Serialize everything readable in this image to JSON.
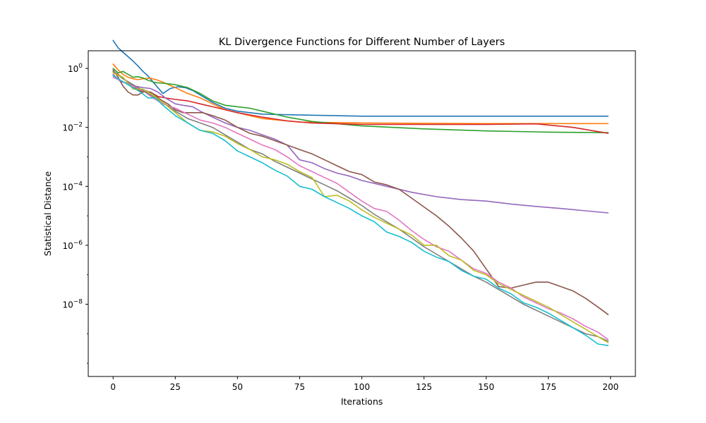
{
  "chart_data": {
    "type": "line",
    "title": "KL Divergence Functions for Different Number of Layers",
    "xlabel": "Iterations",
    "ylabel": "Statistical Distance",
    "xlim": [
      -10,
      210
    ],
    "xticks": [
      0,
      25,
      50,
      75,
      100,
      125,
      150,
      175,
      200
    ],
    "xtick_labels": [
      "0",
      "25",
      "50",
      "75",
      "100",
      "125",
      "150",
      "175",
      "200"
    ],
    "yscale": "log",
    "ylim_log10": [
      -10.45,
      0.6
    ],
    "yticks_log10": [
      0,
      -2,
      -4,
      -6,
      -8
    ],
    "ytick_labels": [
      "10",
      "10",
      "10",
      "10",
      "10"
    ],
    "ytick_exponents": [
      "0",
      "−2",
      "−4",
      "−6",
      "−8"
    ],
    "grid": false,
    "legend": "none",
    "series": [
      {
        "color": "#1f77b4",
        "x": [
          0,
          2,
          4,
          6,
          8,
          10,
          12,
          14,
          17,
          20,
          23,
          26,
          29,
          32,
          35,
          40,
          45,
          50,
          60,
          75,
          100,
          150,
          199
        ],
        "log10_y": [
          0.95,
          0.7,
          0.55,
          0.4,
          0.25,
          0.08,
          -0.1,
          -0.25,
          -0.55,
          -0.85,
          -0.68,
          -0.62,
          -0.65,
          -0.75,
          -0.9,
          -1.15,
          -1.35,
          -1.45,
          -1.55,
          -1.58,
          -1.62,
          -1.62,
          -1.62
        ]
      },
      {
        "color": "#ff7f0e",
        "x": [
          0,
          2,
          4,
          6,
          8,
          10,
          12,
          15,
          18,
          21,
          25,
          30,
          35,
          40,
          45,
          50,
          60,
          75,
          100,
          150,
          199
        ],
        "log10_y": [
          0.15,
          -0.05,
          -0.2,
          -0.3,
          -0.35,
          -0.38,
          -0.35,
          -0.33,
          -0.4,
          -0.5,
          -0.65,
          -0.85,
          -1.0,
          -1.2,
          -1.4,
          -1.5,
          -1.7,
          -1.82,
          -1.85,
          -1.87,
          -1.87
        ]
      },
      {
        "color": "#2ca02c",
        "x": [
          0,
          2,
          4,
          6,
          8,
          10,
          12,
          14,
          17,
          20,
          25,
          30,
          35,
          40,
          45,
          50,
          55,
          60,
          70,
          80,
          100,
          125,
          150,
          175,
          199
        ],
        "log10_y": [
          0.0,
          -0.15,
          -0.1,
          -0.2,
          -0.3,
          -0.28,
          -0.32,
          -0.4,
          -0.48,
          -0.5,
          -0.55,
          -0.65,
          -0.85,
          -1.1,
          -1.25,
          -1.3,
          -1.35,
          -1.45,
          -1.65,
          -1.8,
          -1.95,
          -2.05,
          -2.12,
          -2.16,
          -2.18
        ]
      },
      {
        "color": "#d62728",
        "x": [
          0,
          2,
          4,
          6,
          8,
          10,
          12,
          15,
          18,
          21,
          25,
          30,
          35,
          40,
          45,
          50,
          60,
          70,
          80,
          100,
          125,
          150,
          170,
          185,
          199
        ],
        "log10_y": [
          -0.1,
          -0.2,
          -0.35,
          -0.45,
          -0.6,
          -0.72,
          -0.8,
          -0.8,
          -0.95,
          -1.0,
          -1.05,
          -1.1,
          -1.2,
          -1.3,
          -1.4,
          -1.5,
          -1.65,
          -1.78,
          -1.85,
          -1.9,
          -1.9,
          -1.9,
          -1.88,
          -2.0,
          -2.2
        ]
      },
      {
        "color": "#9467bd",
        "x": [
          0,
          3,
          6,
          9,
          12,
          15,
          18,
          21,
          25,
          28,
          32,
          35,
          40,
          45,
          50,
          55,
          60,
          65,
          70,
          75,
          80,
          85,
          90,
          95,
          100,
          110,
          120,
          130,
          140,
          150,
          160,
          170,
          180,
          190,
          199
        ],
        "log10_y": [
          -0.2,
          -0.45,
          -0.5,
          -0.6,
          -0.65,
          -0.68,
          -0.8,
          -1.0,
          -1.2,
          -1.25,
          -1.3,
          -1.45,
          -1.65,
          -1.85,
          -2.0,
          -2.1,
          -2.25,
          -2.4,
          -2.6,
          -3.1,
          -3.2,
          -3.4,
          -3.55,
          -3.65,
          -3.8,
          -4.0,
          -4.2,
          -4.35,
          -4.45,
          -4.5,
          -4.6,
          -4.68,
          -4.75,
          -4.83,
          -4.9
        ]
      },
      {
        "color": "#8c564b",
        "x": [
          0,
          2,
          4,
          6,
          8,
          10,
          13,
          16,
          19,
          22,
          25,
          28,
          32,
          36,
          40,
          45,
          50,
          55,
          60,
          65,
          70,
          75,
          80,
          85,
          90,
          95,
          100,
          105,
          110,
          115,
          120,
          125,
          130,
          135,
          140,
          145,
          150,
          155,
          160,
          165,
          170,
          175,
          180,
          185,
          190,
          195,
          199
        ],
        "log10_y": [
          -0.05,
          -0.3,
          -0.6,
          -0.8,
          -0.9,
          -0.9,
          -0.75,
          -0.85,
          -1.05,
          -1.2,
          -1.4,
          -1.5,
          -1.5,
          -1.5,
          -1.6,
          -1.75,
          -2.0,
          -2.2,
          -2.3,
          -2.45,
          -2.6,
          -2.75,
          -2.9,
          -3.1,
          -3.3,
          -3.5,
          -3.6,
          -3.85,
          -3.95,
          -4.1,
          -4.4,
          -4.7,
          -5.0,
          -5.35,
          -5.75,
          -6.2,
          -6.8,
          -7.4,
          -7.45,
          -7.35,
          -7.25,
          -7.25,
          -7.4,
          -7.55,
          -7.8,
          -8.1,
          -8.35
        ]
      },
      {
        "color": "#e377c2",
        "x": [
          0,
          4,
          8,
          12,
          16,
          20,
          25,
          30,
          35,
          40,
          45,
          50,
          55,
          60,
          65,
          70,
          75,
          80,
          85,
          90,
          95,
          100,
          105,
          110,
          115,
          120,
          125,
          130,
          135,
          140,
          145,
          150,
          155,
          160,
          165,
          170,
          175,
          180,
          185,
          190,
          195,
          199
        ],
        "log10_y": [
          -0.3,
          -0.45,
          -0.6,
          -0.75,
          -1.0,
          -1.2,
          -1.35,
          -1.55,
          -1.75,
          -1.85,
          -2.0,
          -2.2,
          -2.4,
          -2.6,
          -2.75,
          -3.0,
          -3.3,
          -3.5,
          -3.7,
          -3.9,
          -4.2,
          -4.5,
          -4.75,
          -4.85,
          -5.15,
          -5.5,
          -5.8,
          -6.05,
          -6.2,
          -6.5,
          -6.8,
          -6.95,
          -7.25,
          -7.45,
          -7.75,
          -7.95,
          -8.15,
          -8.3,
          -8.5,
          -8.75,
          -8.95,
          -9.2
        ]
      },
      {
        "color": "#7f7f7f",
        "x": [
          0,
          4,
          8,
          12,
          16,
          20,
          25,
          30,
          35,
          40,
          45,
          50,
          55,
          60,
          65,
          70,
          75,
          80,
          85,
          90,
          95,
          100,
          105,
          110,
          115,
          120,
          125,
          130,
          135,
          140,
          145,
          150,
          155,
          160,
          165,
          170,
          175,
          180,
          185,
          190,
          195,
          199
        ],
        "log10_y": [
          -0.1,
          -0.35,
          -0.55,
          -0.75,
          -0.95,
          -1.15,
          -1.45,
          -1.7,
          -1.85,
          -2.0,
          -2.25,
          -2.5,
          -2.75,
          -2.9,
          -3.15,
          -3.35,
          -3.55,
          -3.75,
          -3.95,
          -4.15,
          -4.4,
          -4.65,
          -4.95,
          -5.2,
          -5.45,
          -5.75,
          -6.05,
          -6.3,
          -6.55,
          -6.8,
          -7.05,
          -7.25,
          -7.5,
          -7.75,
          -8.0,
          -8.2,
          -8.4,
          -8.6,
          -8.8,
          -9.0,
          -9.1,
          -9.25
        ]
      },
      {
        "color": "#bcbd22",
        "x": [
          0,
          4,
          8,
          12,
          16,
          20,
          25,
          30,
          35,
          40,
          45,
          50,
          55,
          60,
          65,
          70,
          75,
          80,
          85,
          90,
          95,
          100,
          105,
          110,
          115,
          120,
          125,
          130,
          135,
          140,
          145,
          150,
          155,
          160,
          165,
          170,
          175,
          180,
          185,
          190,
          195,
          199
        ],
        "log10_y": [
          -0.15,
          -0.3,
          -0.7,
          -0.7,
          -0.9,
          -1.15,
          -1.5,
          -1.85,
          -2.1,
          -2.15,
          -2.3,
          -2.55,
          -2.75,
          -3.0,
          -3.1,
          -3.25,
          -3.5,
          -3.7,
          -4.35,
          -4.3,
          -4.5,
          -4.8,
          -5.05,
          -5.25,
          -5.45,
          -5.65,
          -6.0,
          -6.0,
          -6.35,
          -6.5,
          -6.85,
          -7.0,
          -7.3,
          -7.5,
          -7.7,
          -7.9,
          -8.1,
          -8.35,
          -8.6,
          -8.85,
          -9.1,
          -9.3
        ]
      },
      {
        "color": "#17becf",
        "x": [
          0,
          4,
          8,
          11,
          14,
          17,
          20,
          25,
          30,
          35,
          40,
          45,
          50,
          55,
          60,
          65,
          70,
          75,
          80,
          85,
          90,
          95,
          100,
          105,
          110,
          115,
          120,
          125,
          130,
          135,
          140,
          145,
          150,
          155,
          160,
          165,
          170,
          175,
          180,
          185,
          190,
          195,
          199
        ],
        "log10_y": [
          -0.25,
          -0.45,
          -0.65,
          -0.8,
          -1.0,
          -1.0,
          -1.25,
          -1.6,
          -1.85,
          -2.1,
          -2.2,
          -2.45,
          -2.8,
          -3.0,
          -3.2,
          -3.45,
          -3.65,
          -4.0,
          -4.1,
          -4.35,
          -4.55,
          -4.75,
          -5.0,
          -5.2,
          -5.55,
          -5.7,
          -5.9,
          -6.2,
          -6.4,
          -6.55,
          -6.85,
          -7.05,
          -7.15,
          -7.45,
          -7.65,
          -7.95,
          -8.1,
          -8.3,
          -8.55,
          -8.8,
          -9.05,
          -9.35,
          -9.4
        ]
      }
    ]
  }
}
